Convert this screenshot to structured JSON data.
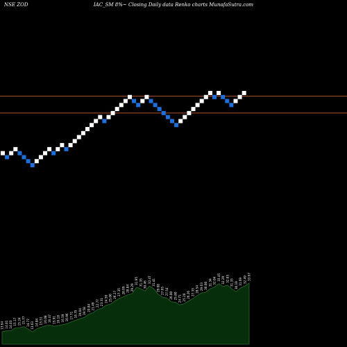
{
  "header": {
    "symbol": "NSE ZOD",
    "subtitle": "IAC_SM 8%~ Closing Daily data Renko charts MunafaSutra.com"
  },
  "colors": {
    "background": "#000000",
    "brick_up": "#ffffff",
    "brick_down": "#1e6fd9",
    "ref_line": "#b5542a",
    "area_fill": "#062e0a",
    "area_stroke": "#2c6a30",
    "label_color": "#ffffff"
  },
  "chart_data": [
    {
      "type": "renko",
      "brick_size": 1,
      "bricks": [
        {
          "direction": "up",
          "level": 18
        },
        {
          "direction": "down",
          "level": 17
        },
        {
          "direction": "up",
          "level": 18
        },
        {
          "direction": "up",
          "level": 19
        },
        {
          "direction": "down",
          "level": 18
        },
        {
          "direction": "down",
          "level": 17
        },
        {
          "direction": "down",
          "level": 16
        },
        {
          "direction": "down",
          "level": 15
        },
        {
          "direction": "up",
          "level": 16
        },
        {
          "direction": "up",
          "level": 17
        },
        {
          "direction": "up",
          "level": 18
        },
        {
          "direction": "up",
          "level": 19
        },
        {
          "direction": "down",
          "level": 18
        },
        {
          "direction": "up",
          "level": 19
        },
        {
          "direction": "up",
          "level": 20
        },
        {
          "direction": "down",
          "level": 19
        },
        {
          "direction": "up",
          "level": 20
        },
        {
          "direction": "up",
          "level": 21
        },
        {
          "direction": "up",
          "level": 22
        },
        {
          "direction": "up",
          "level": 23
        },
        {
          "direction": "up",
          "level": 24
        },
        {
          "direction": "up",
          "level": 25
        },
        {
          "direction": "up",
          "level": 26
        },
        {
          "direction": "up",
          "level": 27
        },
        {
          "direction": "down",
          "level": 26
        },
        {
          "direction": "up",
          "level": 27
        },
        {
          "direction": "up",
          "level": 28
        },
        {
          "direction": "up",
          "level": 29
        },
        {
          "direction": "up",
          "level": 30
        },
        {
          "direction": "up",
          "level": 31
        },
        {
          "direction": "up",
          "level": 32
        },
        {
          "direction": "down",
          "level": 31
        },
        {
          "direction": "down",
          "level": 30
        },
        {
          "direction": "up",
          "level": 31
        },
        {
          "direction": "up",
          "level": 32
        },
        {
          "direction": "down",
          "level": 31
        },
        {
          "direction": "down",
          "level": 30
        },
        {
          "direction": "down",
          "level": 29
        },
        {
          "direction": "down",
          "level": 28
        },
        {
          "direction": "down",
          "level": 27
        },
        {
          "direction": "down",
          "level": 26
        },
        {
          "direction": "down",
          "level": 25
        },
        {
          "direction": "up",
          "level": 26
        },
        {
          "direction": "up",
          "level": 27
        },
        {
          "direction": "up",
          "level": 28
        },
        {
          "direction": "up",
          "level": 29
        },
        {
          "direction": "up",
          "level": 30
        },
        {
          "direction": "up",
          "level": 31
        },
        {
          "direction": "up",
          "level": 32
        },
        {
          "direction": "up",
          "level": 33
        },
        {
          "direction": "down",
          "level": 32
        },
        {
          "direction": "up",
          "level": 33
        },
        {
          "direction": "down",
          "level": 32
        },
        {
          "direction": "down",
          "level": 31
        },
        {
          "direction": "down",
          "level": 30
        },
        {
          "direction": "up",
          "level": 31
        },
        {
          "direction": "up",
          "level": 32
        },
        {
          "direction": "up",
          "level": 33
        }
      ],
      "reference_lines": [
        32.2,
        28.0
      ],
      "ylim": [
        10,
        40
      ],
      "grid": false
    },
    {
      "type": "area",
      "labels": [
        "13.64",
        "14.01",
        "14.03",
        "15.17",
        "15.24",
        "15.77",
        "14.77",
        "13.63",
        "14.84",
        "15.51",
        "16.08",
        "16.47",
        "15.91",
        "16.18",
        "16.59",
        "16.96",
        "17.71",
        "18.35",
        "19.04",
        "19.58",
        "20.84",
        "21.49",
        "22.77",
        "23.31",
        "24.56",
        "25.00",
        "26.27",
        "27.35",
        "28.09",
        "28.84",
        "29.29",
        "31.95",
        "31.35",
        "30.46",
        "32.47",
        "31.41",
        "29.08",
        "27.95",
        "27.54",
        "26.00",
        "25.80",
        "24.71",
        "25.20",
        "26.26",
        "27.33",
        "28.54",
        "29.63",
        "30.00",
        "31.34",
        "32.04",
        "33.45",
        "32.29",
        "32.85",
        "31.33",
        "30.19",
        "31.69",
        "32.49",
        "33.67"
      ],
      "values": [
        13.64,
        14.01,
        14.03,
        15.17,
        15.24,
        15.77,
        14.77,
        13.63,
        14.84,
        15.51,
        16.08,
        16.47,
        15.91,
        16.18,
        16.59,
        16.96,
        17.71,
        18.35,
        19.04,
        19.58,
        20.84,
        21.49,
        22.77,
        23.31,
        24.56,
        25.0,
        26.27,
        27.35,
        28.09,
        28.84,
        29.29,
        31.95,
        31.35,
        30.46,
        32.47,
        31.41,
        29.08,
        27.95,
        27.54,
        26.0,
        25.8,
        24.71,
        25.2,
        26.26,
        27.33,
        28.54,
        29.63,
        30.0,
        31.34,
        32.04,
        33.45,
        32.29,
        32.85,
        31.33,
        30.19,
        31.69,
        32.49,
        33.67
      ],
      "ylim": [
        12,
        42
      ]
    }
  ]
}
